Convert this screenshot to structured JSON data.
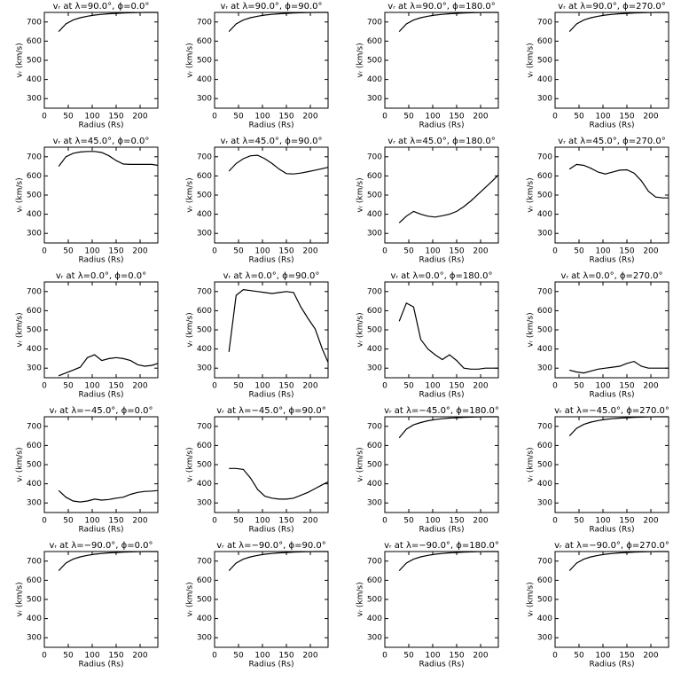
{
  "chart_data": [
    {
      "type": "line",
      "title": "vᵣ at λ=90.0°, ϕ=0.0°",
      "xlabel": "Radius (Rs)",
      "ylabel": "vᵣ (km/s)",
      "x": [
        30,
        45,
        60,
        75,
        90,
        105,
        120,
        135,
        150,
        165,
        180,
        195,
        210,
        225,
        237
      ],
      "values": [
        650,
        690,
        710,
        722,
        730,
        736,
        740,
        743,
        745,
        747,
        748,
        749,
        750,
        750,
        750
      ],
      "color": "#000000",
      "xlim": [
        0,
        237
      ],
      "ylim": [
        250,
        750
      ],
      "xticks": [
        0,
        50,
        100,
        150,
        200
      ],
      "yticks": [
        300,
        400,
        500,
        600,
        700
      ]
    },
    {
      "type": "line",
      "title": "vᵣ at λ=90.0°, ϕ=90.0°",
      "xlabel": "Radius (Rs)",
      "ylabel": "vᵣ (km/s)",
      "x": [
        30,
        45,
        60,
        75,
        90,
        105,
        120,
        135,
        150,
        165,
        180,
        195,
        210,
        225,
        237
      ],
      "values": [
        650,
        690,
        710,
        722,
        730,
        736,
        740,
        743,
        745,
        747,
        748,
        749,
        750,
        750,
        750
      ],
      "color": "#000000",
      "xlim": [
        0,
        237
      ],
      "ylim": [
        250,
        750
      ],
      "xticks": [
        0,
        50,
        100,
        150,
        200
      ],
      "yticks": [
        300,
        400,
        500,
        600,
        700
      ]
    },
    {
      "type": "line",
      "title": "vᵣ at λ=90.0°, ϕ=180.0°",
      "xlabel": "Radius (Rs)",
      "ylabel": "vᵣ (km/s)",
      "x": [
        30,
        45,
        60,
        75,
        90,
        105,
        120,
        135,
        150,
        165,
        180,
        195,
        210,
        225,
        237
      ],
      "values": [
        650,
        690,
        710,
        722,
        730,
        736,
        740,
        743,
        745,
        747,
        748,
        749,
        750,
        750,
        750
      ],
      "color": "#000000",
      "xlim": [
        0,
        237
      ],
      "ylim": [
        250,
        750
      ],
      "xticks": [
        0,
        50,
        100,
        150,
        200
      ],
      "yticks": [
        300,
        400,
        500,
        600,
        700
      ]
    },
    {
      "type": "line",
      "title": "vᵣ at λ=90.0°, ϕ=270.0°",
      "xlabel": "Radius (Rs)",
      "ylabel": "vᵣ (km/s)",
      "x": [
        30,
        45,
        60,
        75,
        90,
        105,
        120,
        135,
        150,
        165,
        180,
        195,
        210,
        225,
        237
      ],
      "values": [
        650,
        690,
        710,
        722,
        730,
        736,
        740,
        743,
        745,
        747,
        748,
        749,
        750,
        750,
        750
      ],
      "color": "#000000",
      "xlim": [
        0,
        237
      ],
      "ylim": [
        250,
        750
      ],
      "xticks": [
        0,
        50,
        100,
        150,
        200
      ],
      "yticks": [
        300,
        400,
        500,
        600,
        700
      ]
    },
    {
      "type": "line",
      "title": "vᵣ at λ=45.0°, ϕ=0.0°",
      "xlabel": "Radius (Rs)",
      "ylabel": "vᵣ (km/s)",
      "x": [
        30,
        45,
        60,
        75,
        90,
        105,
        120,
        135,
        150,
        165,
        180,
        195,
        210,
        225,
        237
      ],
      "values": [
        650,
        700,
        718,
        725,
        728,
        728,
        722,
        705,
        680,
        662,
        660,
        660,
        660,
        660,
        655
      ],
      "color": "#000000",
      "xlim": [
        0,
        237
      ],
      "ylim": [
        250,
        750
      ],
      "xticks": [
        0,
        50,
        100,
        150,
        200
      ],
      "yticks": [
        300,
        400,
        500,
        600,
        700
      ]
    },
    {
      "type": "line",
      "title": "vᵣ at λ=45.0°, ϕ=90.0°",
      "xlabel": "Radius (Rs)",
      "ylabel": "vᵣ (km/s)",
      "x": [
        30,
        45,
        60,
        75,
        90,
        105,
        120,
        135,
        150,
        165,
        180,
        195,
        210,
        225,
        237
      ],
      "values": [
        625,
        665,
        690,
        705,
        708,
        690,
        665,
        635,
        612,
        610,
        615,
        622,
        630,
        638,
        645
      ],
      "color": "#000000",
      "xlim": [
        0,
        237
      ],
      "ylim": [
        250,
        750
      ],
      "xticks": [
        0,
        50,
        100,
        150,
        200
      ],
      "yticks": [
        300,
        400,
        500,
        600,
        700
      ]
    },
    {
      "type": "line",
      "title": "vᵣ at λ=45.0°, ϕ=180.0°",
      "xlabel": "Radius (Rs)",
      "ylabel": "vᵣ (km/s)",
      "x": [
        30,
        45,
        60,
        75,
        90,
        105,
        120,
        135,
        150,
        165,
        180,
        195,
        210,
        225,
        237
      ],
      "values": [
        355,
        390,
        415,
        400,
        390,
        385,
        392,
        400,
        415,
        440,
        470,
        505,
        540,
        575,
        605
      ],
      "color": "#000000",
      "xlim": [
        0,
        237
      ],
      "ylim": [
        250,
        750
      ],
      "xticks": [
        0,
        50,
        100,
        150,
        200
      ],
      "yticks": [
        300,
        400,
        500,
        600,
        700
      ]
    },
    {
      "type": "line",
      "title": "vᵣ at λ=45.0°, ϕ=270.0°",
      "xlabel": "Radius (Rs)",
      "ylabel": "vᵣ (km/s)",
      "x": [
        30,
        45,
        60,
        75,
        90,
        105,
        120,
        135,
        150,
        165,
        180,
        195,
        210,
        225,
        237
      ],
      "values": [
        635,
        660,
        655,
        640,
        620,
        610,
        620,
        630,
        632,
        615,
        575,
        520,
        490,
        485,
        485
      ],
      "color": "#000000",
      "xlim": [
        0,
        237
      ],
      "ylim": [
        250,
        750
      ],
      "xticks": [
        0,
        50,
        100,
        150,
        200
      ],
      "yticks": [
        300,
        400,
        500,
        600,
        700
      ]
    },
    {
      "type": "line",
      "title": "vᵣ at λ=0.0°, ϕ=0.0°",
      "xlabel": "Radius (Rs)",
      "ylabel": "vᵣ (km/s)",
      "x": [
        30,
        45,
        60,
        75,
        90,
        105,
        120,
        135,
        150,
        165,
        180,
        195,
        210,
        225,
        237
      ],
      "values": [
        260,
        275,
        290,
        305,
        355,
        370,
        340,
        350,
        355,
        350,
        340,
        318,
        310,
        315,
        325
      ],
      "color": "#000000",
      "xlim": [
        0,
        237
      ],
      "ylim": [
        250,
        750
      ],
      "xticks": [
        0,
        50,
        100,
        150,
        200
      ],
      "yticks": [
        300,
        400,
        500,
        600,
        700
      ]
    },
    {
      "type": "line",
      "title": "vᵣ at λ=0.0°, ϕ=90.0°",
      "xlabel": "Radius (Rs)",
      "ylabel": "vᵣ (km/s)",
      "x": [
        30,
        45,
        60,
        75,
        90,
        105,
        120,
        135,
        150,
        165,
        180,
        195,
        210,
        225,
        237
      ],
      "values": [
        385,
        680,
        710,
        705,
        700,
        695,
        690,
        695,
        700,
        695,
        620,
        560,
        505,
        400,
        330
      ],
      "color": "#000000",
      "xlim": [
        0,
        237
      ],
      "ylim": [
        250,
        750
      ],
      "xticks": [
        0,
        50,
        100,
        150,
        200
      ],
      "yticks": [
        300,
        400,
        500,
        600,
        700
      ]
    },
    {
      "type": "line",
      "title": "vᵣ at λ=0.0°, ϕ=180.0°",
      "xlabel": "Radius (Rs)",
      "ylabel": "vᵣ (km/s)",
      "x": [
        30,
        45,
        60,
        75,
        90,
        105,
        120,
        135,
        150,
        165,
        180,
        195,
        210,
        225,
        237
      ],
      "values": [
        545,
        640,
        620,
        450,
        400,
        370,
        345,
        370,
        340,
        300,
        295,
        295,
        300,
        300,
        300
      ],
      "color": "#000000",
      "xlim": [
        0,
        237
      ],
      "ylim": [
        250,
        750
      ],
      "xticks": [
        0,
        50,
        100,
        150,
        200
      ],
      "yticks": [
        300,
        400,
        500,
        600,
        700
      ]
    },
    {
      "type": "line",
      "title": "vᵣ at λ=0.0°, ϕ=270.0°",
      "xlabel": "Radius (Rs)",
      "ylabel": "vᵣ (km/s)",
      "x": [
        30,
        45,
        60,
        75,
        90,
        105,
        120,
        135,
        150,
        165,
        180,
        195,
        210,
        225,
        237
      ],
      "values": [
        290,
        280,
        275,
        285,
        295,
        300,
        305,
        310,
        325,
        335,
        310,
        300,
        300,
        300,
        300
      ],
      "color": "#000000",
      "xlim": [
        0,
        237
      ],
      "ylim": [
        250,
        750
      ],
      "xticks": [
        0,
        50,
        100,
        150,
        200
      ],
      "yticks": [
        300,
        400,
        500,
        600,
        700
      ]
    },
    {
      "type": "line",
      "title": "vᵣ at λ=−45.0°, ϕ=0.0°",
      "xlabel": "Radius (Rs)",
      "ylabel": "vᵣ (km/s)",
      "x": [
        30,
        45,
        60,
        75,
        90,
        105,
        120,
        135,
        150,
        165,
        180,
        195,
        210,
        225,
        237
      ],
      "values": [
        365,
        330,
        310,
        305,
        310,
        320,
        315,
        318,
        325,
        330,
        345,
        355,
        360,
        362,
        365
      ],
      "color": "#000000",
      "xlim": [
        0,
        237
      ],
      "ylim": [
        250,
        750
      ],
      "xticks": [
        0,
        50,
        100,
        150,
        200
      ],
      "yticks": [
        300,
        400,
        500,
        600,
        700
      ]
    },
    {
      "type": "line",
      "title": "vᵣ at λ=−45.0°, ϕ=90.0°",
      "xlabel": "Radius (Rs)",
      "ylabel": "vᵣ (km/s)",
      "x": [
        30,
        45,
        60,
        75,
        90,
        105,
        120,
        135,
        150,
        165,
        180,
        195,
        210,
        225,
        237
      ],
      "values": [
        480,
        480,
        475,
        430,
        370,
        335,
        325,
        320,
        320,
        325,
        340,
        355,
        375,
        395,
        410
      ],
      "color": "#000000",
      "xlim": [
        0,
        237
      ],
      "ylim": [
        250,
        750
      ],
      "xticks": [
        0,
        50,
        100,
        150,
        200
      ],
      "yticks": [
        300,
        400,
        500,
        600,
        700
      ]
    },
    {
      "type": "line",
      "title": "vᵣ at λ=−45.0°, ϕ=180.0°",
      "xlabel": "Radius (Rs)",
      "ylabel": "vᵣ (km/s)",
      "x": [
        30,
        45,
        60,
        75,
        90,
        105,
        120,
        135,
        150,
        165,
        180,
        195,
        210,
        225,
        237
      ],
      "values": [
        640,
        685,
        708,
        720,
        729,
        735,
        740,
        743,
        745,
        747,
        748,
        749,
        750,
        750,
        750
      ],
      "color": "#000000",
      "xlim": [
        0,
        237
      ],
      "ylim": [
        250,
        750
      ],
      "xticks": [
        0,
        50,
        100,
        150,
        200
      ],
      "yticks": [
        300,
        400,
        500,
        600,
        700
      ]
    },
    {
      "type": "line",
      "title": "vᵣ at λ=−45.0°, ϕ=270.0°",
      "xlabel": "Radius (Rs)",
      "ylabel": "vᵣ (km/s)",
      "x": [
        30,
        45,
        60,
        75,
        90,
        105,
        120,
        135,
        150,
        165,
        180,
        195,
        210,
        225,
        237
      ],
      "values": [
        650,
        690,
        710,
        722,
        730,
        736,
        740,
        743,
        745,
        747,
        748,
        749,
        750,
        750,
        750
      ],
      "color": "#000000",
      "xlim": [
        0,
        237
      ],
      "ylim": [
        250,
        750
      ],
      "xticks": [
        0,
        50,
        100,
        150,
        200
      ],
      "yticks": [
        300,
        400,
        500,
        600,
        700
      ]
    },
    {
      "type": "line",
      "title": "vᵣ at λ=−90.0°, ϕ=0.0°",
      "xlabel": "Radius (Rs)",
      "ylabel": "vᵣ (km/s)",
      "x": [
        30,
        45,
        60,
        75,
        90,
        105,
        120,
        135,
        150,
        165,
        180,
        195,
        210,
        225,
        237
      ],
      "values": [
        650,
        690,
        710,
        722,
        730,
        736,
        740,
        743,
        745,
        747,
        748,
        749,
        750,
        750,
        750
      ],
      "color": "#000000",
      "xlim": [
        0,
        237
      ],
      "ylim": [
        250,
        750
      ],
      "xticks": [
        0,
        50,
        100,
        150,
        200
      ],
      "yticks": [
        300,
        400,
        500,
        600,
        700
      ]
    },
    {
      "type": "line",
      "title": "vᵣ at λ=−90.0°, ϕ=90.0°",
      "xlabel": "Radius (Rs)",
      "ylabel": "vᵣ (km/s)",
      "x": [
        30,
        45,
        60,
        75,
        90,
        105,
        120,
        135,
        150,
        165,
        180,
        195,
        210,
        225,
        237
      ],
      "values": [
        650,
        690,
        710,
        722,
        730,
        736,
        740,
        743,
        745,
        747,
        748,
        749,
        750,
        750,
        750
      ],
      "color": "#000000",
      "xlim": [
        0,
        237
      ],
      "ylim": [
        250,
        750
      ],
      "xticks": [
        0,
        50,
        100,
        150,
        200
      ],
      "yticks": [
        300,
        400,
        500,
        600,
        700
      ]
    },
    {
      "type": "line",
      "title": "vᵣ at λ=−90.0°, ϕ=180.0°",
      "xlabel": "Radius (Rs)",
      "ylabel": "vᵣ (km/s)",
      "x": [
        30,
        45,
        60,
        75,
        90,
        105,
        120,
        135,
        150,
        165,
        180,
        195,
        210,
        225,
        237
      ],
      "values": [
        650,
        690,
        710,
        722,
        730,
        736,
        740,
        743,
        745,
        747,
        748,
        749,
        750,
        750,
        750
      ],
      "color": "#000000",
      "xlim": [
        0,
        237
      ],
      "ylim": [
        250,
        750
      ],
      "xticks": [
        0,
        50,
        100,
        150,
        200
      ],
      "yticks": [
        300,
        400,
        500,
        600,
        700
      ]
    },
    {
      "type": "line",
      "title": "vᵣ at λ=−90.0°, ϕ=270.0°",
      "xlabel": "Radius (Rs)",
      "ylabel": "vᵣ (km/s)",
      "x": [
        30,
        45,
        60,
        75,
        90,
        105,
        120,
        135,
        150,
        165,
        180,
        195,
        210,
        225,
        237
      ],
      "values": [
        650,
        690,
        710,
        722,
        730,
        736,
        740,
        743,
        745,
        747,
        748,
        749,
        750,
        750,
        750
      ],
      "color": "#000000",
      "xlim": [
        0,
        237
      ],
      "ylim": [
        250,
        750
      ],
      "xticks": [
        0,
        50,
        100,
        150,
        200
      ],
      "yticks": [
        300,
        400,
        500,
        600,
        700
      ]
    }
  ]
}
